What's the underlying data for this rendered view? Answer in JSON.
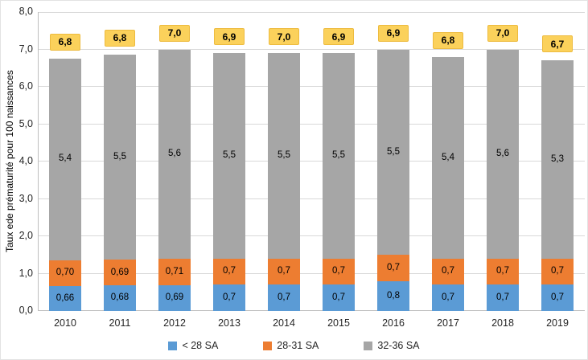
{
  "chart_data": {
    "type": "bar",
    "stacked": true,
    "title": "",
    "xlabel": "",
    "ylabel": "Taux ede prématurité pour 100 naissances",
    "ylim": [
      0,
      8
    ],
    "ytick_labels": [
      "0,0",
      "1,0",
      "2,0",
      "3,0",
      "4,0",
      "5,0",
      "6,0",
      "7,0",
      "8,0"
    ],
    "grid": true,
    "legend_position": "bottom",
    "categories": [
      "2010",
      "2011",
      "2012",
      "2013",
      "2014",
      "2015",
      "2016",
      "2017",
      "2018",
      "2019"
    ],
    "series": [
      {
        "name": "< 28 SA",
        "color": "#5b9bd5",
        "values": [
          0.66,
          0.68,
          0.69,
          0.7,
          0.7,
          0.7,
          0.8,
          0.7,
          0.7,
          0.7
        ],
        "labels": [
          "0,66",
          "0,68",
          "0,69",
          "0,7",
          "0,7",
          "0,7",
          "0,8",
          "0,7",
          "0,7",
          "0,7"
        ]
      },
      {
        "name": "28-31 SA",
        "color": "#ed7d31",
        "values": [
          0.7,
          0.69,
          0.71,
          0.7,
          0.7,
          0.7,
          0.7,
          0.7,
          0.7,
          0.7
        ],
        "labels": [
          "0,70",
          "0,69",
          "0,71",
          "0,7",
          "0,7",
          "0,7",
          "0,7",
          "0,7",
          "0,7",
          "0,7"
        ]
      },
      {
        "name": "32-36 SA",
        "color": "#a6a6a6",
        "values": [
          5.4,
          5.5,
          5.6,
          5.5,
          5.5,
          5.5,
          5.5,
          5.4,
          5.6,
          5.3
        ],
        "labels": [
          "5,4",
          "5,5",
          "5,6",
          "5,5",
          "5,5",
          "5,5",
          "5,5",
          "5,4",
          "5,6",
          "5,3"
        ]
      }
    ],
    "totals": {
      "values": [
        6.8,
        6.8,
        7.0,
        6.9,
        7.0,
        6.9,
        6.9,
        6.8,
        7.0,
        6.7
      ],
      "labels": [
        "6,8",
        "6,8",
        "7,0",
        "6,9",
        "7,0",
        "6,9",
        "6,9",
        "6,8",
        "7,0",
        "6,7"
      ],
      "box_color": "#fbd15b",
      "text_color": "#000000"
    }
  },
  "style_colors": {
    "gridline": "#d9d9d9",
    "axis_line": "#bfbfbf",
    "tick_text": "#262626"
  }
}
